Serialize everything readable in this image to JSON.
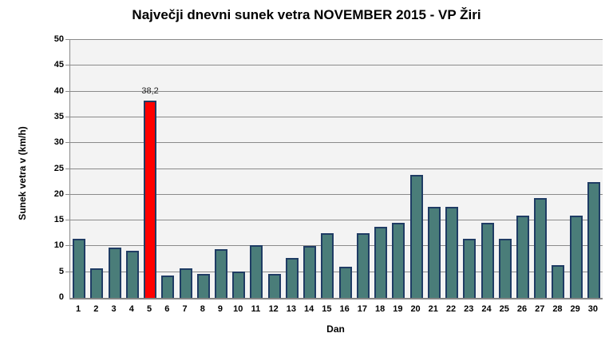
{
  "chart": {
    "title": "Največji dnevni sunek vetra NOVEMBER 2015 - VP Žiri",
    "xlabel": "Dan",
    "ylabel": "Sunek vetra v (km/h)"
  },
  "chart_data": {
    "type": "bar",
    "title": "Največji dnevni sunek vetra NOVEMBER 2015 - VP Žiri",
    "xlabel": "Dan",
    "ylabel": "Sunek vetra v (km/h)",
    "ylim": [
      0,
      50
    ],
    "yticks": [
      0,
      5,
      10,
      15,
      20,
      25,
      30,
      35,
      40,
      45,
      50
    ],
    "grid": true,
    "legend": false,
    "plot_bg": "#F3F3F3",
    "grid_color": "#8A8A8A",
    "bar_color": "#4A7D79",
    "bar_border_color": "#1F3C64",
    "highlight_color": "#FF0000",
    "categories": [
      "1",
      "2",
      "3",
      "4",
      "5",
      "6",
      "7",
      "8",
      "9",
      "10",
      "11",
      "12",
      "13",
      "14",
      "15",
      "16",
      "17",
      "18",
      "19",
      "20",
      "21",
      "22",
      "23",
      "24",
      "25",
      "26",
      "27",
      "28",
      "29",
      "30"
    ],
    "values": [
      11.4,
      5.8,
      9.7,
      9.1,
      38.2,
      4.4,
      5.8,
      4.7,
      9.4,
      5.1,
      10.2,
      4.7,
      7.8,
      10.1,
      12.6,
      6.1,
      12.6,
      13.7,
      14.5,
      23.9,
      17.6,
      17.6,
      11.4,
      14.5,
      11.4,
      16.0,
      19.3,
      6.4,
      16.0,
      22.4
    ],
    "highlight_index": 4,
    "data_labels": [
      {
        "index": 4,
        "text": "38,2"
      }
    ]
  }
}
